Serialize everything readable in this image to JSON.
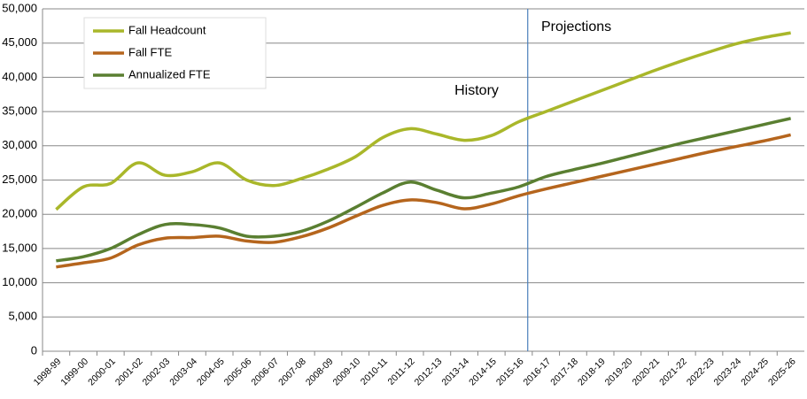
{
  "chart_data": {
    "type": "line",
    "categories": [
      "1998-99",
      "1999-00",
      "2000-01",
      "2001-02",
      "2002-03",
      "2003-04",
      "2004-05",
      "2005-06",
      "2006-07",
      "2007-08",
      "2008-09",
      "2009-10",
      "2010-11",
      "2011-12",
      "2012-13",
      "2013-14",
      "2014-15",
      "2015-16",
      "2016-17",
      "2017-18",
      "2018-19",
      "2019-20",
      "2020-21",
      "2021-22",
      "2022-23",
      "2023-24",
      "2024-25",
      "2025-26"
    ],
    "series": [
      {
        "name": "Fall Headcount",
        "color": "#a9b72a",
        "values": [
          20700,
          24000,
          24500,
          27500,
          25700,
          26200,
          27500,
          25000,
          24200,
          25200,
          26600,
          28400,
          31200,
          32500,
          31700,
          30800,
          31500,
          33500,
          35000,
          36500,
          38000,
          39500,
          41000,
          42400,
          43700,
          44900,
          45800,
          46500
        ]
      },
      {
        "name": "Fall FTE",
        "color": "#b5651d",
        "values": [
          12300,
          12900,
          13600,
          15500,
          16500,
          16600,
          16800,
          16100,
          15900,
          16700,
          18000,
          19700,
          21300,
          22100,
          21700,
          20800,
          21500,
          22700,
          23700,
          24600,
          25500,
          26400,
          27300,
          28200,
          29100,
          29900,
          30700,
          31600
        ]
      },
      {
        "name": "Annualized FTE",
        "color": "#5a7f31",
        "values": [
          13200,
          13800,
          15000,
          17000,
          18500,
          18500,
          18000,
          16800,
          16800,
          17500,
          19000,
          21000,
          23100,
          24700,
          23500,
          22400,
          23100,
          24000,
          25500,
          26500,
          27400,
          28400,
          29400,
          30400,
          31300,
          32200,
          33100,
          34000
        ]
      }
    ],
    "annotations": [
      "History",
      "Projections"
    ],
    "ylim": [
      0,
      50000
    ],
    "yticks": [
      0,
      {
        "value": 5000,
        "label": "5,000"
      },
      {
        "value": 10000,
        "label": "10,000"
      },
      {
        "value": 15000,
        "label": "15,000"
      },
      {
        "value": 20000,
        "label": "20,000"
      },
      {
        "value": 25000,
        "label": "25,000"
      },
      {
        "value": 30000,
        "label": "30,000"
      },
      {
        "value": 35000,
        "label": "35,000"
      },
      {
        "value": 40000,
        "label": "40,000"
      },
      {
        "value": 45000,
        "label": "45,000"
      },
      {
        "value": 50000,
        "label": "50,000"
      }
    ],
    "grid": true,
    "legend": "upper left"
  }
}
